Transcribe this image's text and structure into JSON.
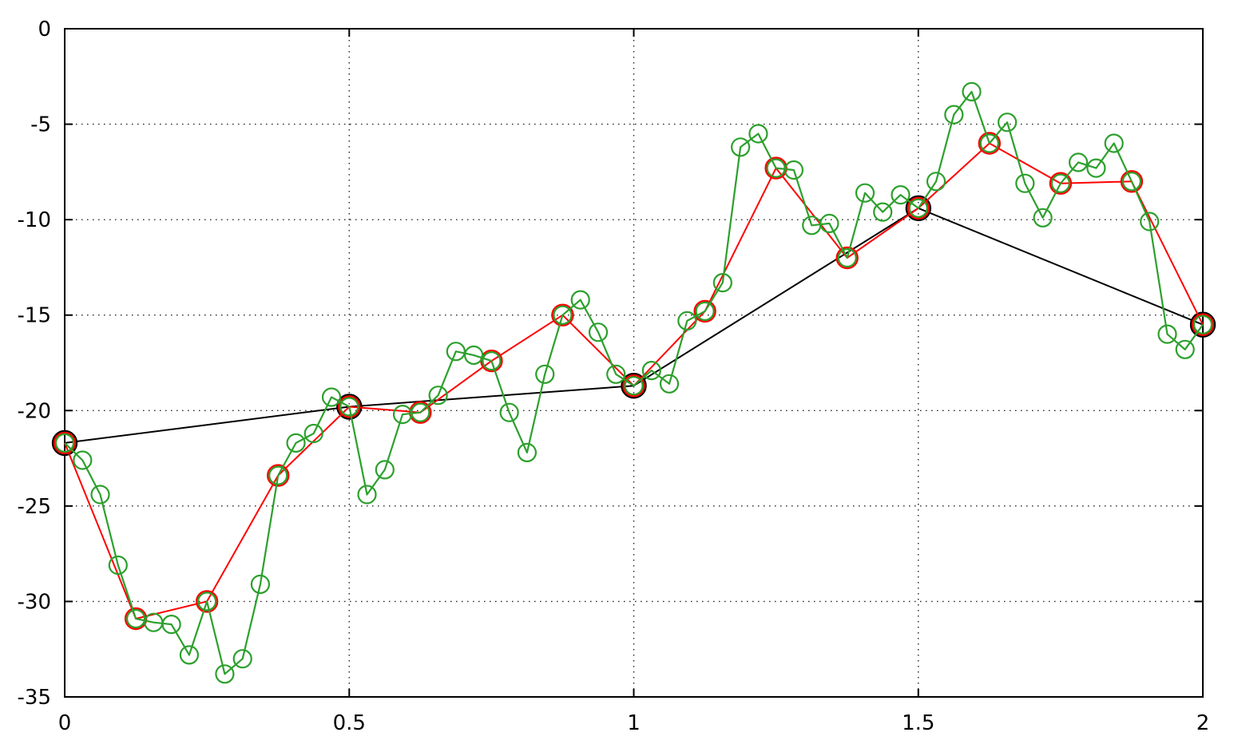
{
  "chart_data": {
    "type": "line",
    "title": "",
    "xlabel": "",
    "ylabel": "",
    "xlim": [
      0,
      2
    ],
    "ylim": [
      -35,
      0
    ],
    "x_ticks": [
      {
        "value": 0,
        "label": "0"
      },
      {
        "value": 0.5,
        "label": "0.5"
      },
      {
        "value": 1,
        "label": "1"
      },
      {
        "value": 1.5,
        "label": "1.5"
      },
      {
        "value": 2,
        "label": "2"
      }
    ],
    "y_ticks": [
      {
        "value": 0,
        "label": "0"
      },
      {
        "value": -5,
        "label": "-5"
      },
      {
        "value": -10,
        "label": "-10"
      },
      {
        "value": -15,
        "label": "-15"
      },
      {
        "value": -20,
        "label": "-20"
      },
      {
        "value": -25,
        "label": "-25"
      },
      {
        "value": -30,
        "label": "-30"
      },
      {
        "value": -35,
        "label": "-35"
      }
    ],
    "grid": true,
    "legend": "none",
    "series": [
      {
        "color": "#000000",
        "marker": "open-circle",
        "x": [
          0,
          0.5,
          1,
          1.5,
          2
        ],
        "y": [
          -21.7,
          -19.8,
          -18.7,
          -9.4,
          -15.5
        ]
      },
      {
        "color": "#ff0000",
        "marker": "open-circle",
        "x": [
          0,
          0.125,
          0.25,
          0.375,
          0.5,
          0.625,
          0.75,
          0.875,
          1,
          1.125,
          1.25,
          1.375,
          1.5,
          1.625,
          1.75,
          1.875,
          2
        ],
        "y": [
          -21.7,
          -30.9,
          -30.0,
          -23.4,
          -19.8,
          -20.1,
          -17.4,
          -15.0,
          -18.7,
          -14.8,
          -7.3,
          -12.0,
          -9.4,
          -6.0,
          -8.1,
          -8.0,
          -15.5
        ]
      },
      {
        "color": "#2ca02c",
        "marker": "open-circle",
        "x": [
          0,
          0.03125,
          0.0625,
          0.09375,
          0.125,
          0.15625,
          0.1875,
          0.21875,
          0.25,
          0.28125,
          0.3125,
          0.34375,
          0.375,
          0.40625,
          0.4375,
          0.46875,
          0.5,
          0.53125,
          0.5625,
          0.59375,
          0.625,
          0.65625,
          0.6875,
          0.71875,
          0.75,
          0.78125,
          0.8125,
          0.84375,
          0.875,
          0.90625,
          0.9375,
          0.96875,
          1,
          1.03125,
          1.0625,
          1.09375,
          1.125,
          1.15625,
          1.1875,
          1.21875,
          1.25,
          1.28125,
          1.3125,
          1.34375,
          1.375,
          1.40625,
          1.4375,
          1.46875,
          1.5,
          1.53125,
          1.5625,
          1.59375,
          1.625,
          1.65625,
          1.6875,
          1.71875,
          1.75,
          1.78125,
          1.8125,
          1.84375,
          1.875,
          1.90625,
          1.9375,
          1.96875,
          2
        ],
        "y": [
          -21.7,
          -22.6,
          -24.4,
          -28.1,
          -30.9,
          -31.1,
          -31.2,
          -32.8,
          -30.0,
          -33.8,
          -33.0,
          -29.1,
          -23.4,
          -21.7,
          -21.2,
          -19.3,
          -19.8,
          -24.4,
          -23.1,
          -20.2,
          -20.1,
          -19.2,
          -16.9,
          -17.1,
          -17.4,
          -20.1,
          -22.2,
          -18.1,
          -15.0,
          -14.2,
          -15.9,
          -18.1,
          -18.7,
          -17.9,
          -18.6,
          -15.3,
          -14.8,
          -13.3,
          -6.2,
          -5.5,
          -7.3,
          -7.4,
          -10.3,
          -10.2,
          -12.0,
          -8.6,
          -9.6,
          -8.7,
          -9.4,
          -8.0,
          -4.5,
          -3.3,
          -6.0,
          -4.9,
          -8.1,
          -9.9,
          -8.1,
          -7.0,
          -7.3,
          -6.0,
          -8.0,
          -10.1,
          -16.0,
          -16.8,
          -15.5
        ]
      }
    ]
  }
}
